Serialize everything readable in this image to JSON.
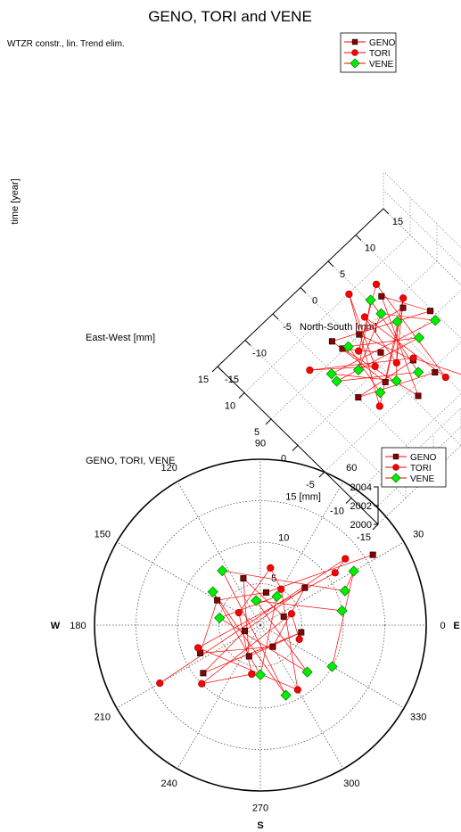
{
  "chart_data": [
    {
      "type": "scatter",
      "projection": "3d",
      "title": "GENO, TORI  and VENE",
      "subtitle": "WTZR constr., lin. Trend elim.",
      "xlabel": "East-West [mm]",
      "ylabel": "North-South [mm]",
      "zlabel": "time [year]",
      "xlim": [
        -15,
        15
      ],
      "ylim": [
        -15,
        15
      ],
      "zlim": [
        2000,
        2004
      ],
      "x_ticks": [
        "-15",
        "-10",
        "-5",
        "0",
        "5",
        "10",
        "15"
      ],
      "y_ticks": [
        "-15",
        "-10",
        "-5",
        "0",
        "5",
        "10",
        "15"
      ],
      "z_ticks": [
        "2000",
        "2002",
        "2004"
      ],
      "grid": true,
      "legend_position": "top-right",
      "series": [
        {
          "name": "GENO",
          "marker": "square",
          "color": "#8b0000",
          "line_color": "#ff0000",
          "points": [
            [
              -6,
              4,
              2000.5
            ],
            [
              -2,
              -6,
              2001.2
            ],
            [
              -4,
              2,
              2001.8
            ],
            [
              3,
              -1,
              2002.3
            ],
            [
              1,
              5,
              2002.9
            ],
            [
              -5,
              -4,
              2003.4
            ],
            [
              6,
              -3,
              2001.0
            ],
            [
              -1,
              8,
              2002.0
            ],
            [
              4,
              4,
              2003.0
            ],
            [
              -7,
              0,
              2000.8
            ],
            [
              2,
              -5,
              2003.6
            ],
            [
              0,
              0,
              2001.5
            ]
          ]
        },
        {
          "name": "TORI",
          "marker": "circle",
          "color": "#ff0000",
          "line_color": "#ff0000",
          "points": [
            [
              -10,
              7,
              2000.4
            ],
            [
              -3,
              3,
              2000.9
            ],
            [
              5,
              -8,
              2001.3
            ],
            [
              -1,
              -2,
              2001.7
            ],
            [
              8,
              2,
              2002.1
            ],
            [
              -6,
              -6,
              2002.5
            ],
            [
              2,
              6,
              2002.8
            ],
            [
              -4,
              -1,
              2003.2
            ],
            [
              3,
              0,
              2003.6
            ],
            [
              -8,
              4,
              2001.1
            ],
            [
              6,
              5,
              2002.6
            ],
            [
              0,
              -4,
              2003.9
            ]
          ]
        },
        {
          "name": "VENE",
          "marker": "diamond",
          "color": "#00ee00",
          "line_color": "#ff0000",
          "points": [
            [
              -3,
              -3,
              2000.6
            ],
            [
              4,
              -2,
              2001.0
            ],
            [
              -2,
              5,
              2001.4
            ],
            [
              1,
              -7,
              2001.8
            ],
            [
              -6,
              1,
              2002.2
            ],
            [
              5,
              3,
              2002.6
            ],
            [
              -1,
              -5,
              2003.0
            ],
            [
              2,
              2,
              2003.4
            ],
            [
              -4,
              6,
              2003.8
            ],
            [
              3,
              -6,
              2000.9
            ],
            [
              -5,
              -2,
              2002.4
            ],
            [
              0,
              3,
              2003.1
            ]
          ]
        }
      ]
    },
    {
      "type": "scatter",
      "projection": "polar",
      "title": "GENO, TORI, VENE",
      "angle_labels": [
        "0",
        "30",
        "60",
        "90",
        "120",
        "150",
        "180",
        "210",
        "240",
        "270",
        "300",
        "330"
      ],
      "radius_labels": [
        "5",
        "10",
        "15 [mm]"
      ],
      "rlim": [
        0,
        20
      ],
      "direction_labels": {
        "east": "E",
        "west": "W",
        "south": "S"
      },
      "grid": true,
      "legend_position": "top-right",
      "series": [
        {
          "name": "GENO",
          "marker": "square",
          "color": "#8b0000",
          "line_color": "#ff0000",
          "points": [
            [
              16,
              32
            ],
            [
              4,
              80
            ],
            [
              6,
              150
            ],
            [
              8,
              205
            ],
            [
              3,
              300
            ],
            [
              7,
              40
            ],
            [
              2,
              200
            ],
            [
              9,
              220
            ],
            [
              5,
              350
            ],
            [
              4,
              250
            ],
            [
              6,
              110
            ],
            [
              3,
              20
            ]
          ]
        },
        {
          "name": "TORI",
          "marker": "circle",
          "color": "#ff0000",
          "line_color": "#ff0000",
          "points": [
            [
              14,
              210
            ],
            [
              13,
              38
            ],
            [
              11,
              35
            ],
            [
              8,
              200
            ],
            [
              9,
              300
            ],
            [
              5,
              60
            ],
            [
              7,
              80
            ],
            [
              3,
              150
            ],
            [
              6,
              260
            ],
            [
              10,
              225
            ],
            [
              4,
              20
            ],
            [
              5,
              340
            ]
          ]
        },
        {
          "name": "VENE",
          "marker": "diamond",
          "color": "#00ee00",
          "line_color": "#ff0000",
          "points": [
            [
              10,
              330
            ],
            [
              13,
              30
            ],
            [
              11,
              22
            ],
            [
              8,
              125
            ],
            [
              9,
              290
            ],
            [
              7,
              145
            ],
            [
              6,
              270
            ],
            [
              4,
              60
            ],
            [
              5,
              170
            ],
            [
              8,
              315
            ],
            [
              3,
              100
            ],
            [
              10,
              10
            ]
          ]
        }
      ]
    }
  ]
}
